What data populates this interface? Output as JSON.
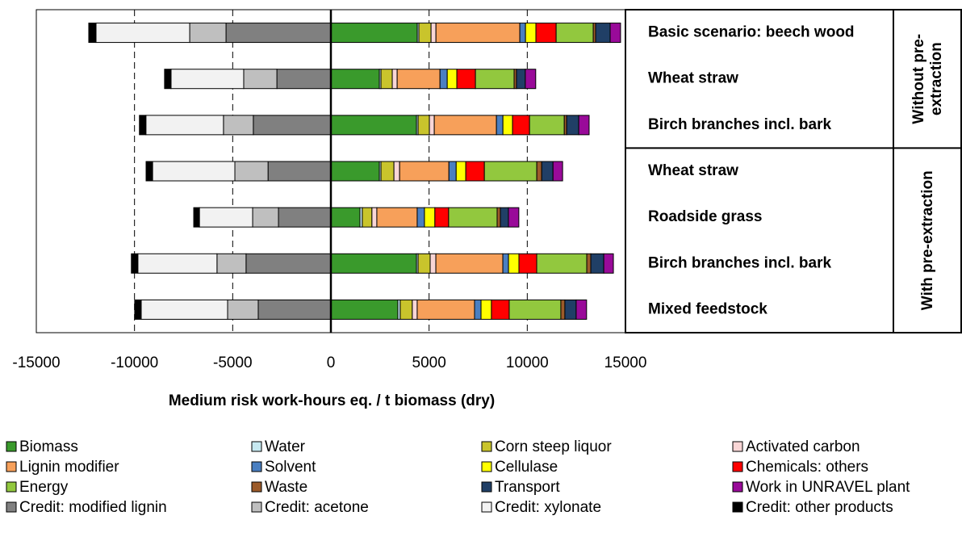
{
  "chart_data": {
    "type": "stacked-barh",
    "xlabel": "Medium risk work-hours eq. / t biomass (dry)",
    "categories": [
      "Basic scenario: beech wood",
      "Wheat straw",
      "Birch branches incl. bark",
      "Wheat straw",
      "Roadside grass",
      "Birch branches incl. bark",
      "Mixed feedstock"
    ],
    "groups": [
      [
        "Without pre-",
        "extraction"
      ],
      [
        "With pre-extraction"
      ]
    ],
    "xlim": [
      -15000,
      15000
    ],
    "xticks": [
      -15000,
      -10000,
      -5000,
      0,
      5000,
      10000,
      15000
    ],
    "grid": true,
    "series": [
      {
        "name": "Biomass",
        "color": "#3a9a2c",
        "values": [
          4400,
          2470,
          4360,
          2470,
          1480,
          4360,
          3410
        ]
      },
      {
        "name": "Water",
        "color": "#c6e8f0",
        "values": [
          80,
          80,
          80,
          80,
          120,
          80,
          120
        ]
      },
      {
        "name": "Corn steep liquor",
        "color": "#c9c42c",
        "values": [
          620,
          575,
          575,
          660,
          490,
          615,
          615
        ]
      },
      {
        "name": "Activated carbon",
        "color": "#f9d6d6",
        "values": [
          250,
          250,
          250,
          290,
          250,
          290,
          250
        ]
      },
      {
        "name": "Lignin modifier",
        "color": "#f7a05a",
        "values": [
          4270,
          2180,
          3165,
          2510,
          2055,
          3410,
          2920
        ]
      },
      {
        "name": "Solvent",
        "color": "#4a7fc1",
        "values": [
          290,
          370,
          330,
          370,
          370,
          290,
          330
        ]
      },
      {
        "name": "Cellulase",
        "color": "#ffff00",
        "values": [
          530,
          490,
          490,
          490,
          530,
          530,
          530
        ]
      },
      {
        "name": "Chemicals: others",
        "color": "#ff0000",
        "values": [
          1030,
          945,
          865,
          945,
          700,
          905,
          905
        ]
      },
      {
        "name": "Energy",
        "color": "#92c83e",
        "values": [
          1890,
          1970,
          1770,
          2670,
          2470,
          2550,
          2630
        ]
      },
      {
        "name": "Waste",
        "color": "#9c5b2a",
        "values": [
          120,
          120,
          120,
          250,
          165,
          205,
          205
        ]
      },
      {
        "name": "Transport",
        "color": "#203f66",
        "values": [
          740,
          450,
          615,
          575,
          410,
          660,
          575
        ]
      },
      {
        "name": "Work in UNRAVEL plant",
        "color": "#990a99",
        "values": [
          530,
          530,
          530,
          490,
          530,
          490,
          530
        ]
      },
      {
        "name": "Credit: modified lignin",
        "color": "#808080",
        "values": [
          -5340,
          -2750,
          -3950,
          -3200,
          -2670,
          -4320,
          -3700
        ]
      },
      {
        "name": "Credit: acetone",
        "color": "#bfbfbf",
        "values": [
          -1850,
          -1690,
          -1520,
          -1690,
          -1315,
          -1480,
          -1560
        ]
      },
      {
        "name": "Credit: xylonate",
        "color": "#f2f2f2",
        "values": [
          -4770,
          -3700,
          -3950,
          -4190,
          -2710,
          -4030,
          -4400
        ]
      },
      {
        "name": "Credit: other products",
        "color": "#000000",
        "values": [
          -370,
          -330,
          -330,
          -330,
          -290,
          -330,
          -330
        ]
      }
    ]
  }
}
